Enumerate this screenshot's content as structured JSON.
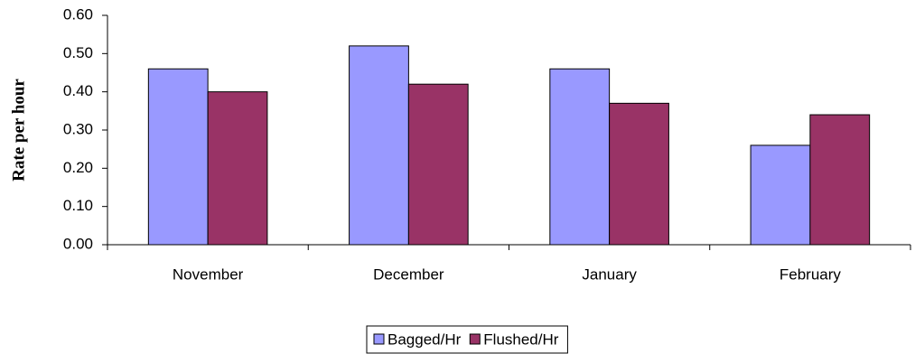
{
  "chart_data": {
    "type": "bar",
    "y_label": "Rate per hour",
    "categories": [
      "November",
      "December",
      "January",
      "February"
    ],
    "series": [
      {
        "name": "Bagged/Hr",
        "color": "#9999ff",
        "values": [
          0.46,
          0.52,
          0.46,
          0.26
        ]
      },
      {
        "name": "Flushed/Hr",
        "color": "#993366",
        "values": [
          0.4,
          0.42,
          0.37,
          0.34
        ]
      }
    ],
    "ylim": [
      0,
      0.6
    ],
    "yticks": [
      {
        "value": 0,
        "label": "0.00"
      },
      {
        "value": 0.1,
        "label": "0.10"
      },
      {
        "value": 0.2,
        "label": "0.20"
      },
      {
        "value": 0.3,
        "label": "0.30"
      },
      {
        "value": 0.4,
        "label": "0.40"
      },
      {
        "value": 0.5,
        "label": "0.50"
      },
      {
        "value": 0.6,
        "label": "0.60"
      }
    ],
    "grid": false,
    "legend": "bottom"
  }
}
